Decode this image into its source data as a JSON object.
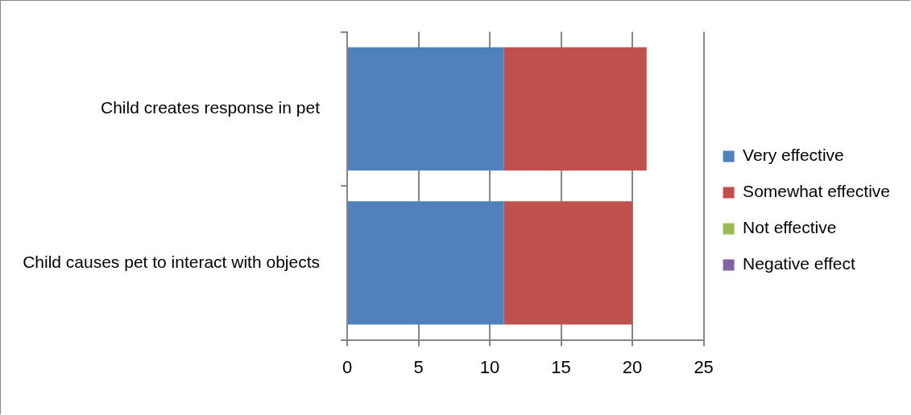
{
  "chart_data": {
    "type": "bar",
    "orientation": "horizontal",
    "stacked": true,
    "categories": [
      "Child creates response in pet",
      "Child causes pet to interact with objects"
    ],
    "series": [
      {
        "name": "Very effective",
        "color": "#4f81bd",
        "values": [
          11,
          11
        ]
      },
      {
        "name": "Somewhat effective",
        "color": "#c0504d",
        "values": [
          10,
          9
        ]
      },
      {
        "name": "Not effective",
        "color": "#9bbb59",
        "values": [
          0,
          0
        ]
      },
      {
        "name": "Negative effect",
        "color": "#8064a2",
        "values": [
          0,
          0
        ]
      }
    ],
    "xlim": [
      0,
      25
    ],
    "xticks": [
      0,
      5,
      10,
      15,
      20,
      25
    ],
    "grid": "x",
    "legend": "right"
  }
}
